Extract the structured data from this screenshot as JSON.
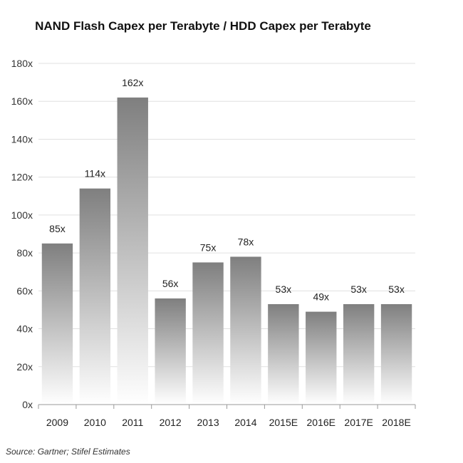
{
  "chart_data": {
    "type": "bar",
    "title": "NAND Flash Capex per Terabyte / HDD Capex per Terabyte",
    "categories": [
      "2009",
      "2010",
      "2011",
      "2012",
      "2013",
      "2014",
      "2015E",
      "2016E",
      "2017E",
      "2018E"
    ],
    "values": [
      85,
      114,
      162,
      56,
      75,
      78,
      53,
      49,
      53,
      53
    ],
    "data_labels": [
      "85x",
      "114x",
      "162x",
      "56x",
      "75x",
      "78x",
      "53x",
      "49x",
      "53x",
      "53x"
    ],
    "yticks": [
      0,
      20,
      40,
      60,
      80,
      100,
      120,
      140,
      160,
      180
    ],
    "ytick_labels": [
      "0x",
      "20x",
      "40x",
      "60x",
      "80x",
      "100x",
      "120x",
      "140x",
      "160x",
      "180x"
    ],
    "ylim": [
      0,
      180
    ],
    "xlabel": "",
    "ylabel": "",
    "grid": true,
    "legend": "none",
    "bar_color_top": "#7f7f7f",
    "bar_color_bottom": "#ffffff",
    "source": "Source: Gartner; Stifel Estimates"
  }
}
